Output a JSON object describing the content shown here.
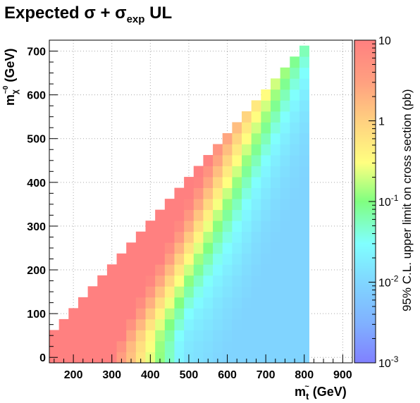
{
  "chart_data": {
    "type": "heatmap",
    "title": {
      "prefix": "Expected ",
      "sigma": "σ",
      "plus": " + ",
      "sigma2": "σ",
      "sub": "exp",
      "suffix": " UL"
    },
    "xlabel": {
      "main": "m",
      "sub": "t",
      "sup": "~",
      "unit": " (GeV)"
    },
    "ylabel": {
      "main": "m",
      "sub": "χ",
      "sup": "~0",
      "unit": " (GeV)"
    },
    "zlabel": "95% C.L. upper limit on cross section (pb)",
    "xlim": [
      137.5,
      925
    ],
    "ylim": [
      -12.5,
      725
    ],
    "x_ticks": [
      "200",
      "300",
      "400",
      "500",
      "600",
      "700",
      "800",
      "900"
    ],
    "y_ticks": [
      "0",
      "100",
      "200",
      "300",
      "400",
      "500",
      "600",
      "700"
    ],
    "z_scale": "log",
    "zlim": [
      0.001,
      10
    ],
    "z_ticks": [
      {
        "base": "10",
        "exp": "-3"
      },
      {
        "base": "10",
        "exp": "-2"
      },
      {
        "base": "10",
        "exp": "-1"
      },
      {
        "base": "1",
        "exp": ""
      },
      {
        "base": "10",
        "exp": ""
      }
    ],
    "grid": true,
    "bin_width_x": 25,
    "bin_width_y": 25,
    "x_bins": [
      150,
      175,
      200,
      225,
      250,
      275,
      300,
      325,
      350,
      375,
      400,
      425,
      450,
      475,
      500,
      525,
      550,
      575,
      600,
      625,
      650,
      675,
      700,
      725,
      750,
      775,
      800
    ],
    "y_bins": [
      0,
      25,
      50,
      75,
      100,
      125,
      150,
      175,
      200,
      225,
      250,
      275,
      300,
      325,
      350,
      375,
      400,
      425,
      450,
      475,
      500,
      525,
      550,
      575,
      600,
      625,
      650,
      675,
      700
    ],
    "z_values": [
      [
        10,
        10,
        10,
        10,
        10,
        10,
        10,
        3.31,
        1.41,
        0.575,
        0.245,
        0.117,
        0.0537,
        0.0229,
        0.0151,
        0.0135,
        0.0118,
        0.0102,
        0.0093,
        0.0093,
        0.0093,
        0.0093,
        0.0093,
        0.0093,
        0.0093,
        0.0093,
        0.0093
      ],
      [
        10,
        10,
        10,
        10,
        10,
        10,
        10,
        5.01,
        1.66,
        0.676,
        0.288,
        0.123,
        0.0562,
        0.0245,
        0.0162,
        0.0138,
        0.0123,
        0.0107,
        0.0098,
        0.0093,
        0.0093,
        0.0093,
        0.0093,
        0.0093,
        0.0093,
        0.0093,
        0.0093
      ],
      [
        10,
        10,
        10,
        10,
        10,
        10,
        10,
        10,
        2.63,
        0.977,
        0.363,
        0.151,
        0.0708,
        0.0309,
        0.0182,
        0.0155,
        0.0135,
        0.0115,
        0.0102,
        0.0095,
        0.0093,
        0.0093,
        0.0093,
        0.0093,
        0.0093,
        0.0093,
        0.0093
      ],
      [
        null,
        10,
        10,
        10,
        10,
        10,
        10,
        10,
        5.01,
        1.78,
        0.617,
        0.234,
        0.0977,
        0.0447,
        0.0224,
        0.0174,
        0.0151,
        0.0126,
        0.011,
        0.0098,
        0.0093,
        0.0093,
        0.0093,
        0.0093,
        0.0093,
        0.0093,
        0.0093
      ],
      [
        null,
        null,
        10,
        10,
        10,
        10,
        10,
        10,
        10,
        3.39,
        1.15,
        0.407,
        0.158,
        0.0646,
        0.0302,
        0.0209,
        0.017,
        0.0138,
        0.0117,
        0.0102,
        0.0095,
        0.0093,
        0.0093,
        0.0093,
        0.0093,
        0.0093,
        0.0093
      ],
      [
        null,
        null,
        null,
        10,
        10,
        10,
        10,
        10,
        10,
        6.46,
        2.14,
        0.724,
        0.263,
        0.102,
        0.0437,
        0.0269,
        0.02,
        0.0155,
        0.0129,
        0.011,
        0.0098,
        0.0093,
        0.0093,
        0.0093,
        0.0093,
        0.0093,
        0.0093
      ],
      [
        null,
        null,
        null,
        null,
        10,
        10,
        10,
        10,
        10,
        10,
        4.17,
        1.35,
        0.468,
        0.17,
        0.0676,
        0.0363,
        0.0245,
        0.0182,
        0.0145,
        0.012,
        0.0105,
        0.0095,
        0.0093,
        0.0093,
        0.0093,
        0.0093,
        0.0093
      ],
      [
        null,
        null,
        null,
        null,
        null,
        10,
        10,
        10,
        10,
        10,
        8.13,
        2.57,
        0.851,
        0.295,
        0.11,
        0.0525,
        0.0316,
        0.0214,
        0.0162,
        0.0132,
        0.0112,
        0.0098,
        0.0093,
        0.0093,
        0.0093,
        0.0093,
        0.0093
      ],
      [
        null,
        null,
        null,
        null,
        null,
        null,
        10,
        10,
        10,
        10,
        10,
        5.13,
        1.62,
        0.537,
        0.191,
        0.0813,
        0.0437,
        0.0269,
        0.0191,
        0.0148,
        0.012,
        0.0102,
        0.0095,
        0.0093,
        0.0093,
        0.0093,
        0.0093
      ],
      [
        null,
        null,
        null,
        null,
        null,
        null,
        null,
        10,
        10,
        10,
        10,
        10,
        3.16,
        1.0,
        0.339,
        0.132,
        0.0646,
        0.0355,
        0.0234,
        0.017,
        0.0132,
        0.011,
        0.0098,
        0.0093,
        0.0093,
        0.0093,
        0.0093
      ],
      [
        null,
        null,
        null,
        null,
        null,
        null,
        null,
        null,
        10,
        10,
        10,
        10,
        6.17,
        1.91,
        0.617,
        0.224,
        0.0977,
        0.049,
        0.0295,
        0.02,
        0.0148,
        0.0118,
        0.0102,
        0.0095,
        0.0093,
        0.0093,
        0.0093
      ],
      [
        null,
        null,
        null,
        null,
        null,
        null,
        null,
        null,
        null,
        10,
        10,
        10,
        10,
        3.8,
        1.17,
        0.398,
        0.155,
        0.0708,
        0.0389,
        0.0245,
        0.017,
        0.0129,
        0.0107,
        0.0098,
        0.0093,
        0.0093,
        0.0093
      ],
      [
        null,
        null,
        null,
        null,
        null,
        null,
        null,
        null,
        null,
        null,
        10,
        10,
        10,
        7.24,
        2.24,
        0.708,
        0.257,
        0.107,
        0.0537,
        0.0309,
        0.02,
        0.0145,
        0.0115,
        0.0102,
        0.0095,
        0.0093,
        0.0093
      ],
      [
        null,
        null,
        null,
        null,
        null,
        null,
        null,
        null,
        null,
        null,
        null,
        10,
        10,
        10,
        4.27,
        1.32,
        0.447,
        0.17,
        0.0776,
        0.0407,
        0.0245,
        0.0166,
        0.0126,
        0.0107,
        0.0098,
        0.0093,
        0.0093
      ],
      [
        null,
        null,
        null,
        null,
        null,
        null,
        null,
        null,
        null,
        null,
        null,
        null,
        10,
        10,
        8.13,
        2.45,
        0.794,
        0.282,
        0.117,
        0.0562,
        0.0309,
        0.0195,
        0.0141,
        0.0115,
        0.0102,
        0.0095,
        0.0093
      ],
      [
        null,
        null,
        null,
        null,
        null,
        null,
        null,
        null,
        null,
        null,
        null,
        null,
        null,
        10,
        10,
        4.57,
        1.45,
        0.49,
        0.186,
        0.0813,
        0.0407,
        0.024,
        0.0162,
        0.0126,
        0.0107,
        0.0098,
        0.0093
      ],
      [
        null,
        null,
        null,
        null,
        null,
        null,
        null,
        null,
        null,
        null,
        null,
        null,
        null,
        null,
        10,
        8.51,
        2.63,
        0.851,
        0.302,
        0.123,
        0.0562,
        0.0309,
        0.0191,
        0.0141,
        0.0115,
        0.0102,
        0.0095
      ],
      [
        null,
        null,
        null,
        null,
        null,
        null,
        null,
        null,
        null,
        null,
        null,
        null,
        null,
        null,
        null,
        10,
        4.9,
        1.51,
        0.513,
        0.195,
        0.0813,
        0.0417,
        0.024,
        0.0162,
        0.0126,
        0.0107,
        0.0098
      ],
      [
        null,
        null,
        null,
        null,
        null,
        null,
        null,
        null,
        null,
        null,
        null,
        null,
        null,
        null,
        null,
        null,
        8.91,
        2.69,
        0.871,
        0.316,
        0.123,
        0.0589,
        0.0309,
        0.0191,
        0.0141,
        0.0115,
        0.0102
      ],
      [
        null,
        null,
        null,
        null,
        null,
        null,
        null,
        null,
        null,
        null,
        null,
        null,
        null,
        null,
        null,
        null,
        null,
        4.79,
        1.51,
        0.525,
        0.195,
        0.0851,
        0.0417,
        0.024,
        0.0162,
        0.0126,
        0.0107
      ],
      [
        null,
        null,
        null,
        null,
        null,
        null,
        null,
        null,
        null,
        null,
        null,
        null,
        null,
        null,
        null,
        null,
        null,
        null,
        2.63,
        0.871,
        0.316,
        0.129,
        0.0589,
        0.0309,
        0.0191,
        0.0141,
        0.0115
      ],
      [
        null,
        null,
        null,
        null,
        null,
        null,
        null,
        null,
        null,
        null,
        null,
        null,
        null,
        null,
        null,
        null,
        null,
        null,
        null,
        1.51,
        0.525,
        0.2,
        0.0851,
        0.0417,
        0.024,
        0.0162,
        0.0126
      ],
      [
        null,
        null,
        null,
        null,
        null,
        null,
        null,
        null,
        null,
        null,
        null,
        null,
        null,
        null,
        null,
        null,
        null,
        null,
        null,
        null,
        0.871,
        0.316,
        0.129,
        0.0589,
        0.0309,
        0.0191,
        0.0141
      ],
      [
        null,
        null,
        null,
        null,
        null,
        null,
        null,
        null,
        null,
        null,
        null,
        null,
        null,
        null,
        null,
        null,
        null,
        null,
        null,
        null,
        null,
        0.525,
        0.2,
        0.0851,
        0.0417,
        0.024,
        0.0162
      ],
      [
        null,
        null,
        null,
        null,
        null,
        null,
        null,
        null,
        null,
        null,
        null,
        null,
        null,
        null,
        null,
        null,
        null,
        null,
        null,
        null,
        null,
        null,
        0.316,
        0.129,
        0.0589,
        0.0309,
        0.0191
      ],
      [
        null,
        null,
        null,
        null,
        null,
        null,
        null,
        null,
        null,
        null,
        null,
        null,
        null,
        null,
        null,
        null,
        null,
        null,
        null,
        null,
        null,
        null,
        null,
        0.2,
        0.0851,
        0.0417,
        0.024
      ],
      [
        null,
        null,
        null,
        null,
        null,
        null,
        null,
        null,
        null,
        null,
        null,
        null,
        null,
        null,
        null,
        null,
        null,
        null,
        null,
        null,
        null,
        null,
        null,
        null,
        0.129,
        0.0589,
        0.0309
      ],
      [
        null,
        null,
        null,
        null,
        null,
        null,
        null,
        null,
        null,
        null,
        null,
        null,
        null,
        null,
        null,
        null,
        null,
        null,
        null,
        null,
        null,
        null,
        null,
        null,
        null,
        0.0851,
        0.0417
      ],
      [
        null,
        null,
        null,
        null,
        null,
        null,
        null,
        null,
        null,
        null,
        null,
        null,
        null,
        null,
        null,
        null,
        null,
        null,
        null,
        null,
        null,
        null,
        null,
        null,
        null,
        null,
        0.0589
      ]
    ]
  }
}
